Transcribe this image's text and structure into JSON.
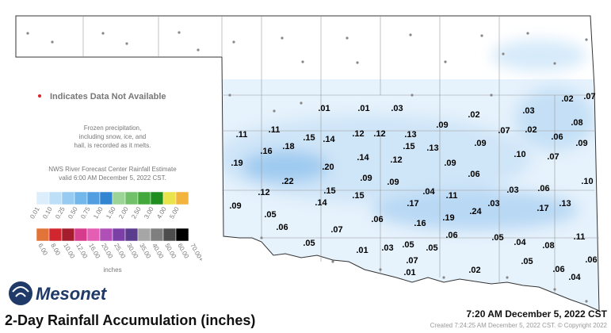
{
  "legend_note": "Indicates Data Not Available",
  "frozen_note": [
    "Frozen precipitation,",
    "including snow, ice, and",
    "hail, is recorded as it melts."
  ],
  "rfc_note": [
    "NWS River Forecast Center Rainfall Estimate",
    "valid 6:00 AM December 5, 2022 CST."
  ],
  "scale": {
    "row1": [
      "0.01",
      "0.10",
      "0.25",
      "0.50",
      "0.75",
      "1.00",
      "1.50",
      "2.00",
      "2.50",
      "3.00",
      "4.00",
      "5.00"
    ],
    "row2": [
      "6.00",
      "8.00",
      "10.00",
      "12.00",
      "16.00",
      "20.00",
      "25.00",
      "30.00",
      "35.00",
      "40.00",
      "50.00",
      "60.00",
      "70.00+"
    ],
    "unit": "inches"
  },
  "logo": "Mesonet",
  "title": "2-Day Rainfall Accumulation (inches)",
  "timestamp": "7:20 AM December 5, 2022 CST",
  "created": "Created 7:24:25 AM December 5, 2022 CST. © Copyright 2022",
  "stations": [
    ".01",
    ".01",
    ".03",
    ".02",
    ".07",
    ".02",
    ".03",
    ".08",
    ".09",
    ".11",
    ".11",
    ".12",
    ".12",
    ".13",
    ".07",
    ".02",
    ".06",
    ".15",
    ".14",
    ".18",
    ".16",
    ".15",
    ".13",
    ".09",
    ".09",
    ".14",
    ".12",
    ".10",
    ".07",
    ".19",
    ".20",
    ".09",
    ".06",
    ".22",
    ".09",
    ".09",
    ".10",
    ".12",
    ".15",
    ".04",
    ".11",
    ".03",
    ".06",
    ".15",
    ".14",
    ".17",
    ".03",
    ".13",
    ".09",
    ".05",
    ".24",
    ".17",
    ".19",
    ".06",
    ".16",
    ".06",
    ".07",
    ".06",
    ".05",
    ".11",
    ".04",
    ".08",
    ".05",
    ".05",
    ".05",
    ".03",
    ".01",
    ".07",
    ".06",
    ".05",
    ".01",
    ".02",
    ".06",
    ".04"
  ]
}
